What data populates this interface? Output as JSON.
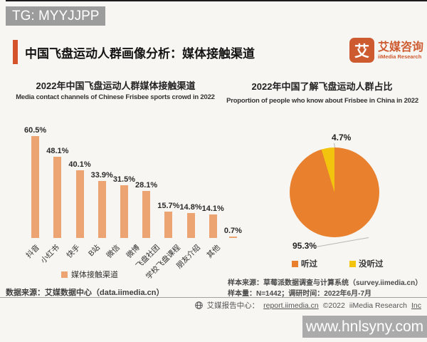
{
  "watermarks": {
    "top": "TG: MYYJJPP",
    "bottom": "www.hnlsyny.com"
  },
  "header": {
    "title": "中国飞盘运动人群画像分析：媒体接触渠道",
    "logo": {
      "glyph": "艾",
      "name_cn": "艾媒咨询",
      "name_en": "iiMedia Research"
    }
  },
  "chart_data": [
    {
      "type": "bar",
      "title": "2022年中国飞盘运动人群媒体接触渠道",
      "subtitle": "Media contact channels of Chinese Frisbee sports crowd in 2022",
      "categories": [
        "抖音",
        "小红书",
        "快手",
        "B站",
        "微信",
        "微博",
        "飞盘社团",
        "学校飞盘课程",
        "朋友介绍",
        "其他"
      ],
      "values": [
        60.5,
        48.1,
        40.1,
        33.9,
        31.5,
        28.1,
        15.7,
        14.8,
        14.1,
        0.7
      ],
      "unit": "%",
      "legend": [
        "媒体接触渠道"
      ],
      "bar_color": "#ECA473",
      "ylim": [
        0,
        65
      ],
      "grid": false,
      "value_labels": true
    },
    {
      "type": "pie",
      "title": "2022年中国了解飞盘运动人群占比",
      "subtitle": "Proportion of people who know about Frisbee in China in 2022",
      "slices": [
        {
          "label": "听过",
          "value": 95.3,
          "color": "#E8802E"
        },
        {
          "label": "没听过",
          "value": 4.7,
          "color": "#F2C40D"
        }
      ],
      "unit": "%",
      "legend_position": "bottom"
    }
  ],
  "footers": {
    "left_source": "数据来源：艾媒数据中心（data.iimedia.cn）",
    "right_source_1": "样本来源：草莓派数据调查与计算系统（survey.iimedia.cn）",
    "right_source_2": "样本量：N=1442；调研时间：2022年6月-7月",
    "report_prefix": "艾媒报告中心：",
    "report_link": "report.iimedia.cn",
    "copyright": "©2022",
    "company": "iiMedia Research",
    "company_suffix": "Inc"
  },
  "colors": {
    "accent": "#D4532B",
    "bar": "#ECA473",
    "pie_main": "#E8802E",
    "pie_secondary": "#F2C40D",
    "watermark_gray": "#9C9C9C"
  }
}
